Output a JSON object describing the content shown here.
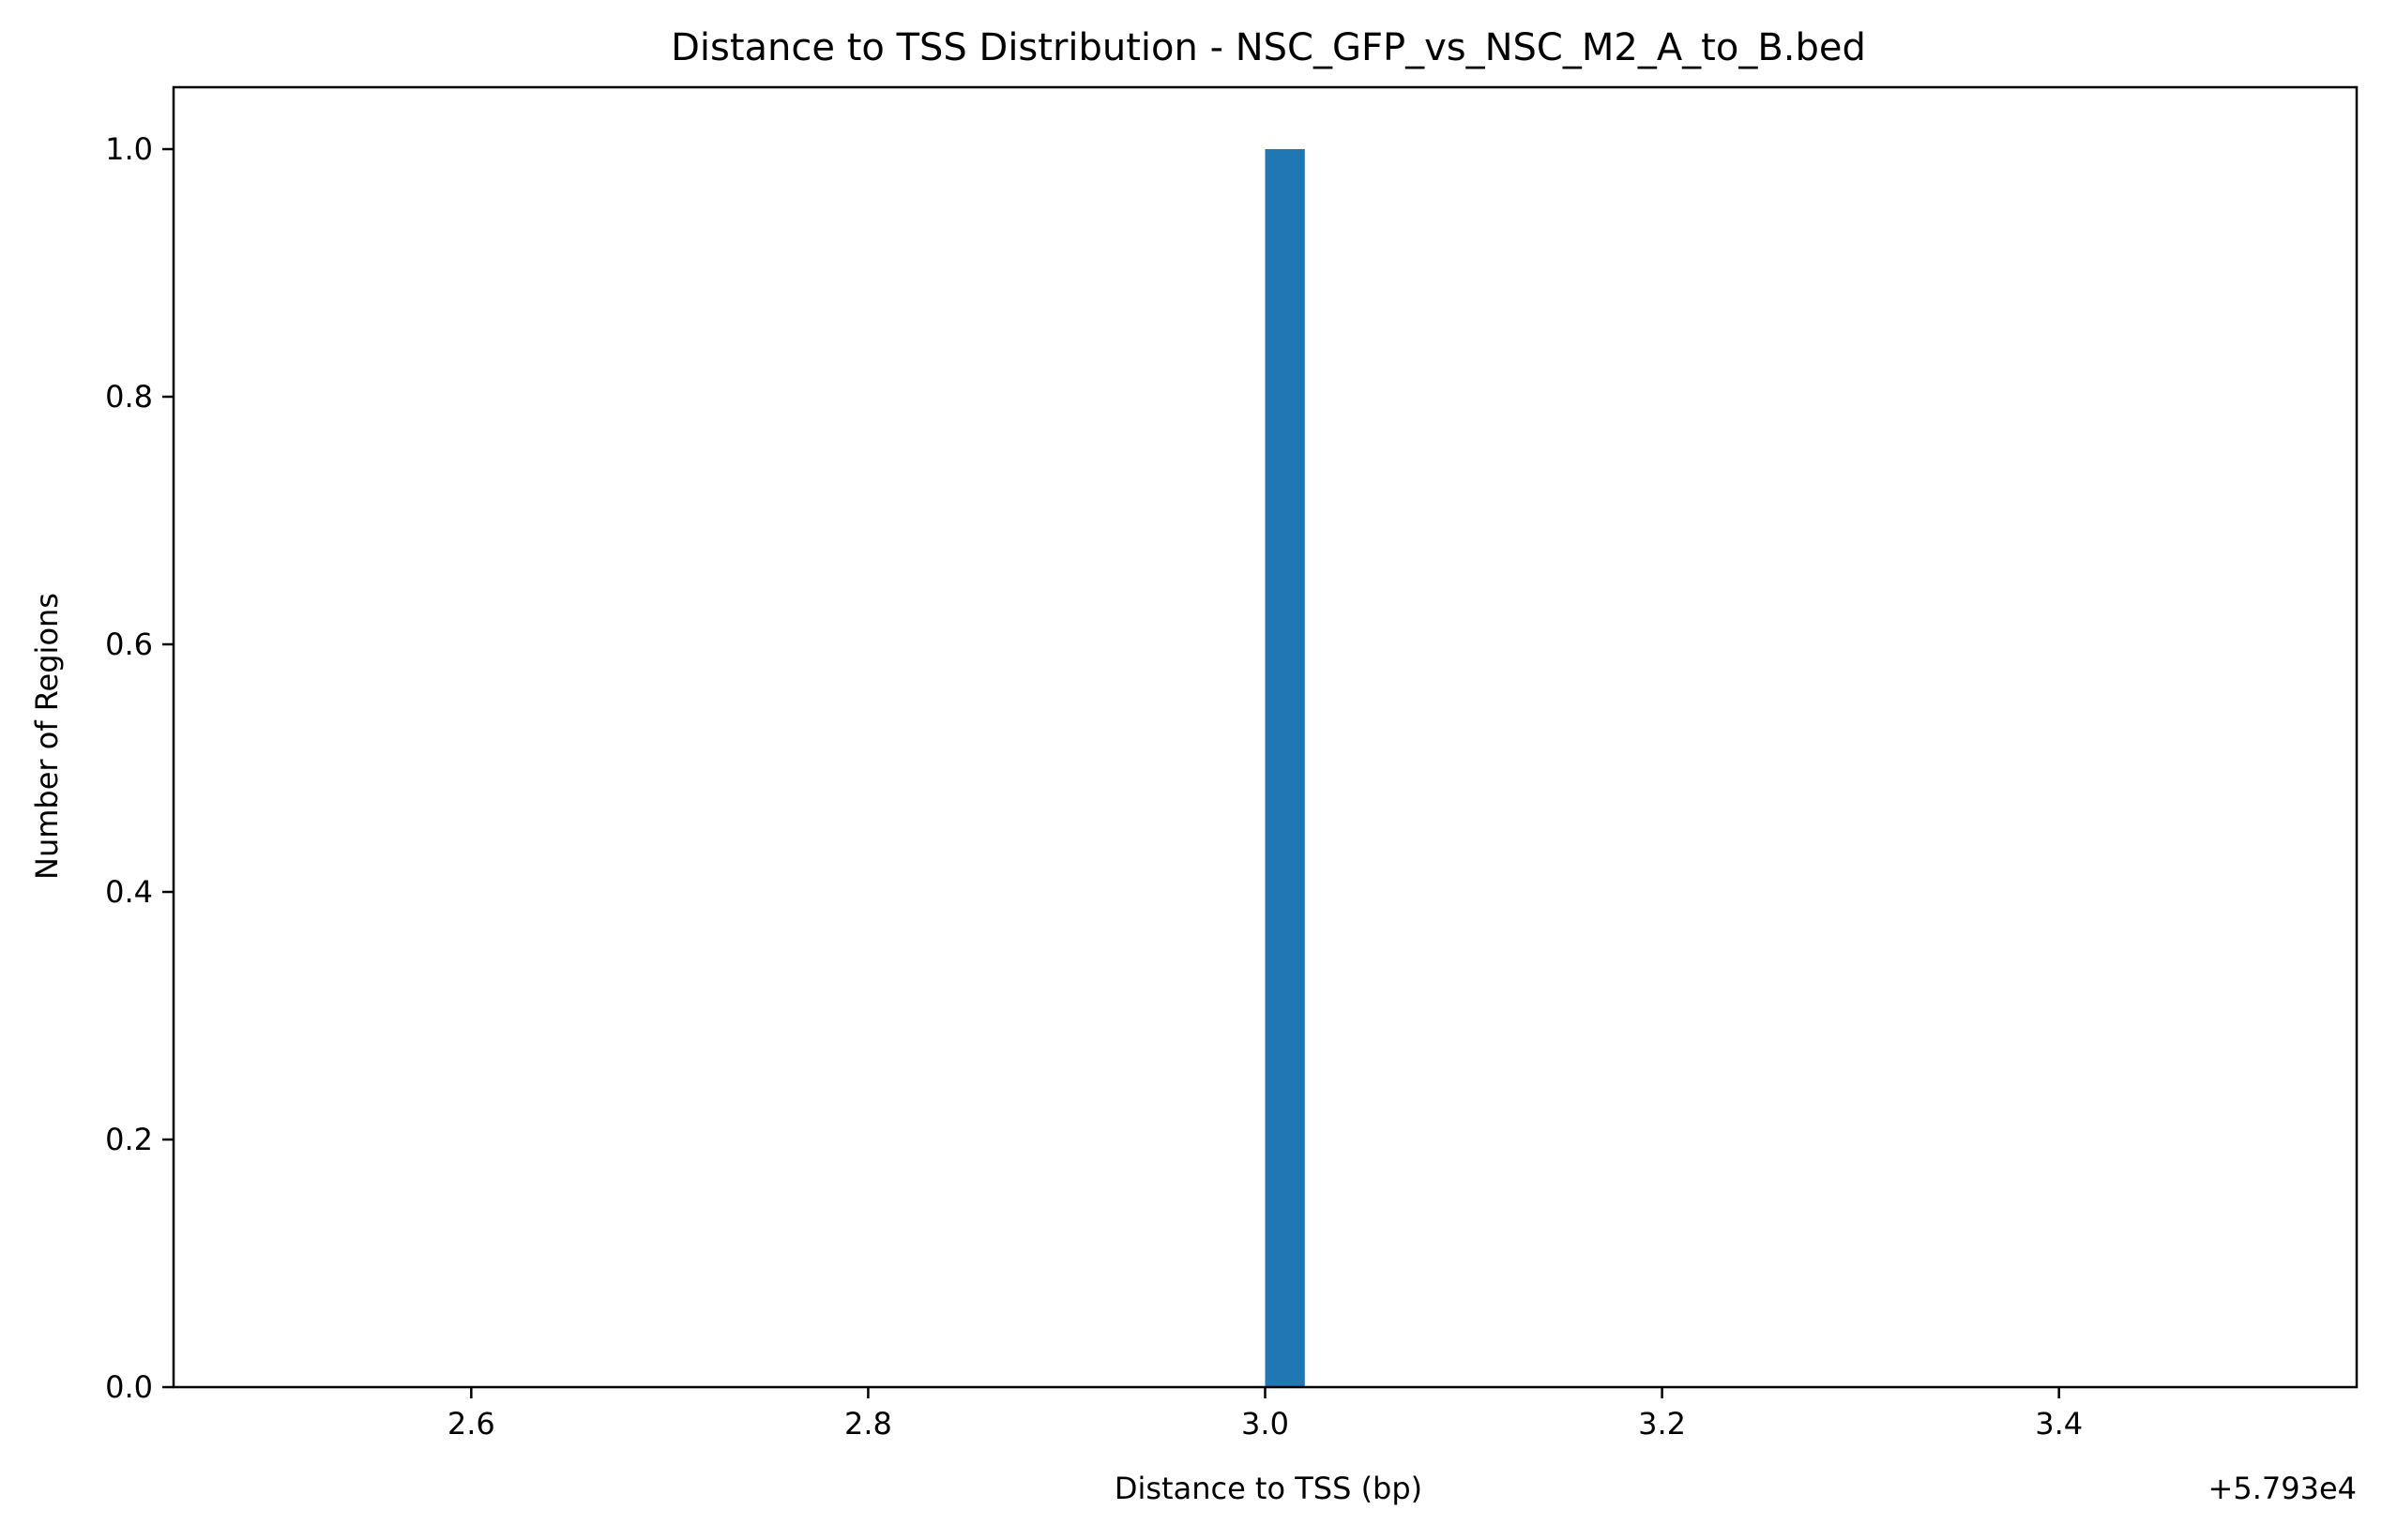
{
  "chart_data": {
    "type": "bar",
    "title": "Distance to TSS Distribution - NSC_GFP_vs_NSC_M2_A_to_B.bed",
    "xlabel": "Distance to TSS (bp)",
    "ylabel": "Number of Regions",
    "x_offset_label": "+5.793e4",
    "xlim": [
      2.45,
      3.55
    ],
    "ylim": [
      0,
      1.05
    ],
    "x_ticks": [
      2.6,
      2.8,
      3.0,
      3.2,
      3.4
    ],
    "x_tick_labels": [
      "2.6",
      "2.8",
      "3.0",
      "3.2",
      "3.4"
    ],
    "y_ticks": [
      0.0,
      0.2,
      0.4,
      0.6,
      0.8,
      1.0
    ],
    "y_tick_labels": [
      "0.0",
      "0.2",
      "0.4",
      "0.6",
      "0.8",
      "1.0"
    ],
    "bins": [
      {
        "x_start": 3.0,
        "x_end": 3.02,
        "value": 1
      }
    ],
    "bar_color": "#1f77b4",
    "grid": false,
    "legend": "none"
  }
}
